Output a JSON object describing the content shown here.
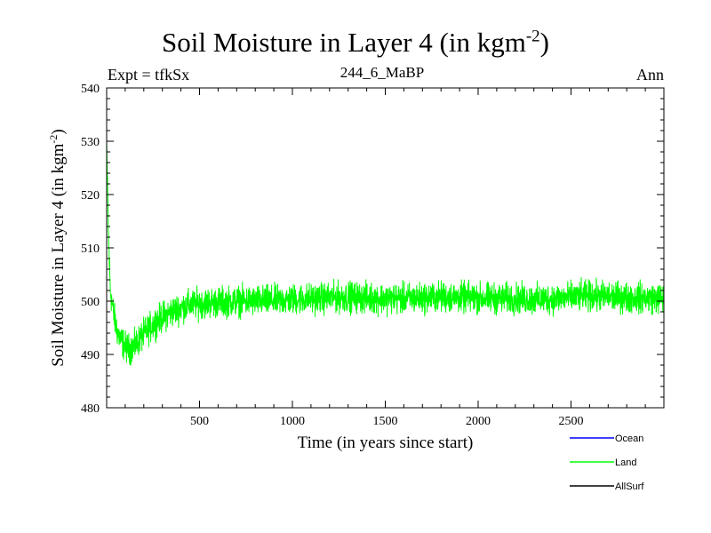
{
  "chart_data": {
    "type": "line",
    "title": {
      "main": "Soil Moisture in Layer 4 (in kgm",
      "sup": "-2",
      "close": ")"
    },
    "expt_label": "Expt = tfkSx",
    "subtitle": "244_6_MaBP",
    "season": "Ann",
    "xlabel": "Time (in years since start)",
    "ylabel": {
      "main": "Soil Moisture in Layer 4 (in kgm",
      "sup": "-2",
      "close": ")"
    },
    "xlim": [
      0,
      3000
    ],
    "ylim": [
      480,
      540
    ],
    "xticks": [
      500,
      1000,
      1500,
      2000,
      2500
    ],
    "yticks": [
      480,
      490,
      500,
      510,
      520,
      530,
      540
    ],
    "grid": false,
    "legend_position": "bottom-right, outside plot",
    "series": [
      {
        "name": "Ocean",
        "color": "#0000ff",
        "values": []
      },
      {
        "name": "Land",
        "color": "#00ff00",
        "x": [
          0,
          10,
          20,
          40,
          60,
          80,
          100,
          120,
          150,
          180,
          220,
          260,
          300,
          350,
          400,
          450,
          500,
          600,
          700,
          800,
          900,
          1000,
          1100,
          1200,
          1300,
          1400,
          1500,
          1600,
          1700,
          1800,
          1900,
          2000,
          2100,
          2200,
          2300,
          2400,
          2500,
          2600,
          2700,
          2800,
          2900,
          3000
        ],
        "values": [
          530,
          512,
          502,
          497,
          494,
          492.5,
          491.5,
          491,
          491.5,
          493,
          494.5,
          496,
          497,
          498,
          498.8,
          499.3,
          499.6,
          499.8,
          500,
          500,
          500.1,
          500.3,
          500.5,
          500.6,
          500.8,
          500.6,
          500.5,
          500.5,
          500.6,
          500.8,
          500.7,
          500.6,
          500.5,
          500.5,
          500.3,
          500.5,
          500.7,
          501,
          500.8,
          500.7,
          500.6,
          500.5
        ],
        "variability": 2
      },
      {
        "name": "AllSurf",
        "color": "#000000",
        "values": []
      }
    ]
  }
}
